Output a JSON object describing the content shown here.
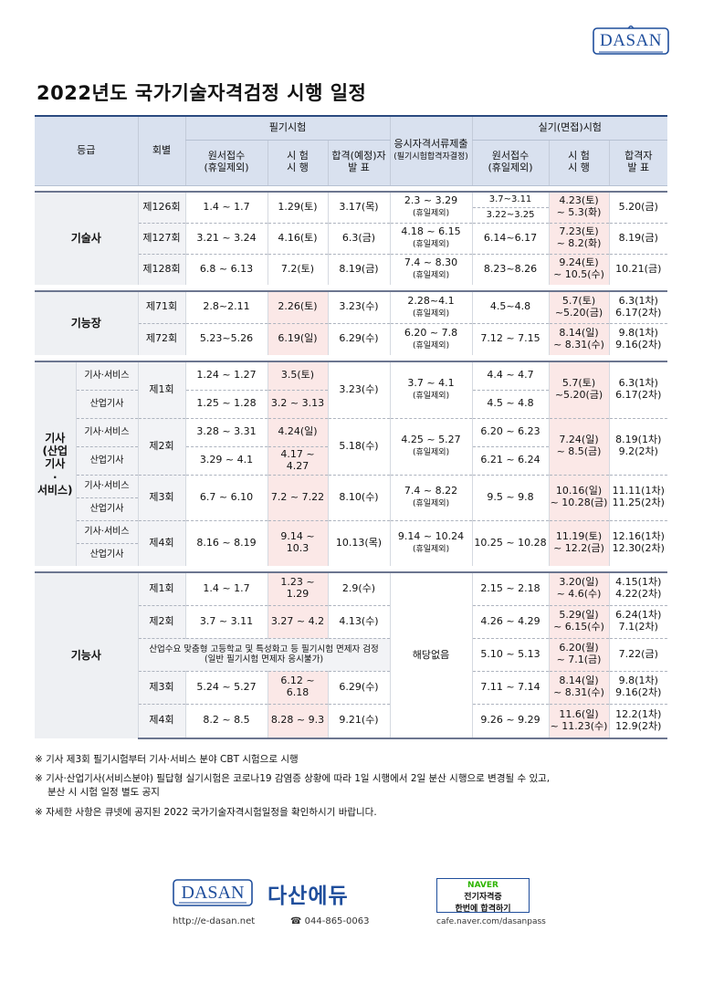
{
  "brand": {
    "logo_text": "DASAN",
    "korean_name": "다산에듀",
    "url": "http://e-dasan.net",
    "phone": "☎ 044-865-0063"
  },
  "naver": {
    "line1": "NAVER",
    "line2": "전기자격증",
    "line3": "한번에 합격하기",
    "cafe_url": "cafe.naver.com/dasanpass"
  },
  "title": "2022년도 국가기술자격검정 시행 일정",
  "header": {
    "grade": "등급",
    "round": "회별",
    "written": "필기시험",
    "doc_submit": "응시자격서류제출",
    "doc_submit_sub": "(필기시험합격자결정)",
    "practical": "실기(면접)시험",
    "apply": "원서접수",
    "apply_sub": "(휴일제외)",
    "exam": "시 험",
    "exam2": "시 행",
    "pass_expected": "합격(예정)자",
    "pass_expected2": "발 표",
    "p_apply": "원서접수",
    "p_apply_sub": "(휴일제외)",
    "p_exam": "시 험",
    "p_exam2": "시 행",
    "p_pass": "합격자",
    "p_pass2": "발 표"
  },
  "gisulsa": {
    "grade": "기술사",
    "rows": [
      {
        "round": "제126회",
        "apply": "1.4 ~ 1.7",
        "exam": "1.29(토)",
        "pass": "3.17(목)",
        "doc": "2.3 ~ 3.29",
        "doc_sub": "(휴일제외)",
        "p_apply_a": "3.7~3.11",
        "p_apply_b": "3.22~3.25",
        "p_exam_a": "4.23(토)",
        "p_exam_b": "~ 5.3(화)",
        "p_pass": "5.20(금)"
      },
      {
        "round": "제127회",
        "apply": "3.21 ~ 3.24",
        "exam": "4.16(토)",
        "pass": "6.3(금)",
        "doc": "4.18 ~ 6.15",
        "doc_sub": "(휴일제외)",
        "p_apply": "6.14~6.17",
        "p_exam_a": "7.23(토)",
        "p_exam_b": "~ 8.2(화)",
        "p_pass": "8.19(금)"
      },
      {
        "round": "제128회",
        "apply": "6.8 ~ 6.13",
        "exam": "7.2(토)",
        "pass": "8.19(금)",
        "doc": "7.4 ~ 8.30",
        "doc_sub": "(휴일제외)",
        "p_apply": "8.23~8.26",
        "p_exam_a": "9.24(토)",
        "p_exam_b": "~ 10.5(수)",
        "p_pass": "10.21(금)"
      }
    ]
  },
  "gineungjang": {
    "grade": "기능장",
    "rows": [
      {
        "round": "제71회",
        "apply": "2.8~2.11",
        "exam": "2.26(토)",
        "pass": "3.23(수)",
        "doc": "2.28~4.1",
        "doc_sub": "(휴일제외)",
        "p_apply": "4.5~4.8",
        "p_exam_a": "5.7(토)",
        "p_exam_b": "~5.20(금)",
        "p_pass_a": "6.3(1차)",
        "p_pass_b": "6.17(2차)"
      },
      {
        "round": "제72회",
        "apply": "5.23~5.26",
        "exam": "6.19(일)",
        "pass": "6.29(수)",
        "doc": "6.20 ~ 7.8",
        "doc_sub": "(휴일제외)",
        "p_apply": "7.12 ~ 7.15",
        "p_exam_a": "8.14(일)",
        "p_exam_b": "~ 8.31(수)",
        "p_pass_a": "9.8(1차)",
        "p_pass_b": "9.16(2차)"
      }
    ]
  },
  "gisa": {
    "grade_l1": "기사",
    "grade_l2": "(산업",
    "grade_l3": "기사",
    "grade_l4": "·",
    "grade_l5": "서비스)",
    "cat_service": "기사·서비스",
    "cat_industrial": "산업기사",
    "r1": {
      "round": "제1회",
      "apply_s": "1.24 ~ 1.27",
      "exam_s": "3.5(토)",
      "apply_i": "1.25 ~ 1.28",
      "exam_i": "3.2 ~ 3.13",
      "pass": "3.23(수)",
      "doc": "3.7 ~ 4.1",
      "doc_sub": "(휴일제외)",
      "p_apply_s": "4.4 ~ 4.7",
      "p_apply_i": "4.5 ~ 4.8",
      "p_exam_a": "5.7(토)",
      "p_exam_b": "~5.20(금)",
      "p_pass_a": "6.3(1차)",
      "p_pass_b": "6.17(2차)"
    },
    "r2": {
      "round": "제2회",
      "apply_s": "3.28 ~ 3.31",
      "exam_s": "4.24(일)",
      "apply_i": "3.29 ~ 4.1",
      "exam_i": "4.17 ~ 4.27",
      "pass": "5.18(수)",
      "doc": "4.25 ~ 5.27",
      "doc_sub": "(휴일제외)",
      "p_apply_s": "6.20 ~ 6.23",
      "p_apply_i": "6.21 ~ 6.24",
      "p_exam_a": "7.24(일)",
      "p_exam_b": "~ 8.5(금)",
      "p_pass_a": "8.19(1차)",
      "p_pass_b": "9.2(2차)"
    },
    "r3": {
      "round": "제3회",
      "apply": "6.7 ~ 6.10",
      "exam": "7.2 ~ 7.22",
      "pass": "8.10(수)",
      "doc": "7.4 ~ 8.22",
      "doc_sub": "(휴일제외)",
      "p_apply": "9.5 ~ 9.8",
      "p_exam_a": "10.16(일)",
      "p_exam_b": "~ 10.28(금)",
      "p_pass_a": "11.11(1차)",
      "p_pass_b": "11.25(2차)"
    },
    "r4": {
      "round": "제4회",
      "apply": "8.16 ~ 8.19",
      "exam": "9.14 ~ 10.3",
      "pass": "10.13(목)",
      "doc": "9.14 ~ 10.24",
      "doc_sub": "(휴일제외)",
      "p_apply": "10.25 ~ 10.28",
      "p_exam_a": "11.19(토)",
      "p_exam_b": "~ 12.2(금)",
      "p_pass_a": "12.16(1차)",
      "p_pass_b": "12.30(2차)"
    }
  },
  "gineungsa": {
    "grade": "기능사",
    "doc_na": "해당없음",
    "special_l1": "산업수요 맞춤형 고등학교 및 특성화고 등 필기시험 면제자 검정",
    "special_l2": "(일반 필기시험 면제자 응시불가)",
    "special": {
      "p_apply": "5.10 ~ 5.13",
      "p_exam_a": "6.20(월)",
      "p_exam_b": "~ 7.1(금)",
      "p_pass": "7.22(금)"
    },
    "rows": [
      {
        "round": "제1회",
        "apply": "1.4 ~ 1.7",
        "exam": "1.23 ~ 1.29",
        "pass": "2.9(수)",
        "p_apply": "2.15 ~ 2.18",
        "p_exam_a": "3.20(일)",
        "p_exam_b": "~ 4.6(수)",
        "p_pass_a": "4.15(1차)",
        "p_pass_b": "4.22(2차)"
      },
      {
        "round": "제2회",
        "apply": "3.7 ~ 3.11",
        "exam": "3.27 ~ 4.2",
        "pass": "4.13(수)",
        "p_apply": "4.26 ~ 4.29",
        "p_exam_a": "5.29(일)",
        "p_exam_b": "~ 6.15(수)",
        "p_pass_a": "6.24(1차)",
        "p_pass_b": "7.1(2차)"
      },
      {
        "round": "제3회",
        "apply": "5.24 ~ 5.27",
        "exam": "6.12 ~ 6.18",
        "pass": "6.29(수)",
        "p_apply": "7.11 ~ 7.14",
        "p_exam_a": "8.14(일)",
        "p_exam_b": "~ 8.31(수)",
        "p_pass_a": "9.8(1차)",
        "p_pass_b": "9.16(2차)"
      },
      {
        "round": "제4회",
        "apply": "8.2 ~ 8.5",
        "exam": "8.28 ~ 9.3",
        "pass": "9.21(수)",
        "p_apply": "9.26 ~ 9.29",
        "p_exam_a": "11.6(일)",
        "p_exam_b": "~ 11.23(수)",
        "p_pass_a": "12.2(1차)",
        "p_pass_b": "12.9(2차)"
      }
    ]
  },
  "notes": [
    "※ 기사 제3회 필기시험부터 기사·서비스 분야 CBT 시험으로 시행",
    "※ 기사·산업기사(서비스분야) 필답형 실기시험은 코로나19 감염증 상황에 따라 1일 시행에서 2일 분산 시행으로 변경될 수 있고,",
    "분산 시 시험 일정 별도 공지",
    "※ 자세한 사항은 큐넷에 공지된 2022 국가기술자격시험일정을 확인하시기 바랍니다."
  ]
}
